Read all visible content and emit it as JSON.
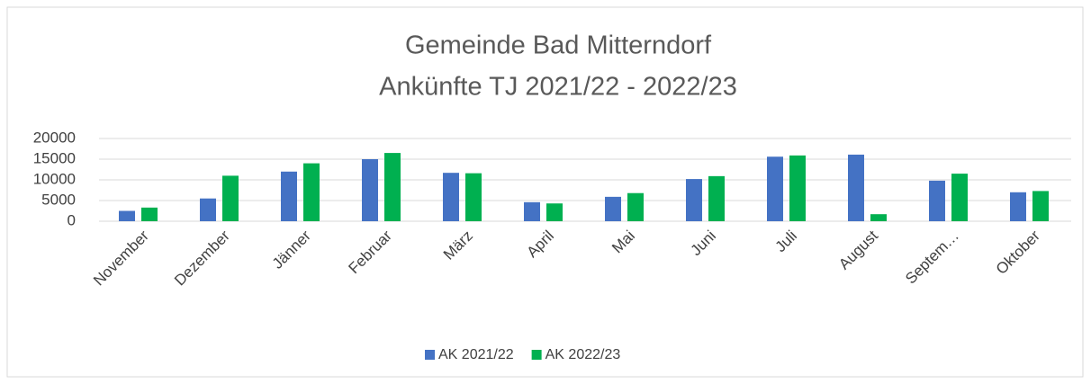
{
  "chart_data": {
    "type": "bar",
    "title": "Gemeinde Bad Mitterndorf",
    "subtitle": "Ankünfte TJ 2021/22 - 2022/23",
    "categories": [
      "November",
      "Dezember",
      "Jänner",
      "Februar",
      "März",
      "April",
      "Mai",
      "Juni",
      "Juli",
      "August",
      "Septem…",
      "Oktober"
    ],
    "series": [
      {
        "name": "AK 2021/22",
        "color": "#4472c4",
        "values": [
          2500,
          5500,
          12000,
          15000,
          11700,
          4600,
          5900,
          10200,
          15600,
          16100,
          9800,
          7000
        ]
      },
      {
        "name": "AK 2022/23",
        "color": "#00b050",
        "values": [
          3300,
          11000,
          14000,
          16500,
          11600,
          4300,
          6800,
          10900,
          15900,
          1700,
          11500,
          7300
        ]
      }
    ],
    "ylim": [
      0,
      20000
    ],
    "yticks": [
      0,
      5000,
      10000,
      15000,
      20000
    ],
    "grid": true,
    "legend": "bottom"
  }
}
